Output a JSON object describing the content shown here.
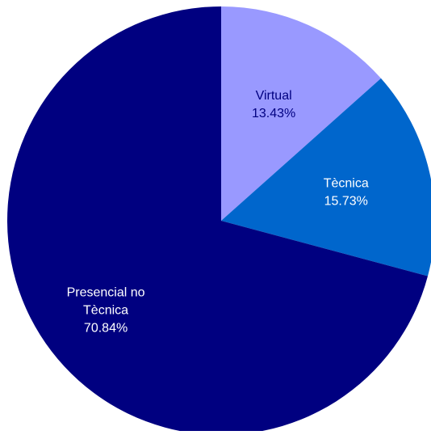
{
  "chart_data": {
    "type": "pie",
    "title": "",
    "slices": [
      {
        "label_lines": [
          "Virtual"
        ],
        "value": 13.43,
        "value_label": "13.43%",
        "color": "#9999FF",
        "label_color": "#000080"
      },
      {
        "label_lines": [
          "Tècnica"
        ],
        "value": 15.73,
        "value_label": "15.73%",
        "color": "#0066CC",
        "label_color": "#FFFFFF"
      },
      {
        "label_lines": [
          "Presencial no",
          "Tècnica"
        ],
        "value": 70.84,
        "value_label": "70.84%",
        "color": "#000080",
        "label_color": "#FFFFFF"
      }
    ],
    "start_angle": "12 o'clock",
    "direction": "clockwise",
    "legend": "none"
  }
}
